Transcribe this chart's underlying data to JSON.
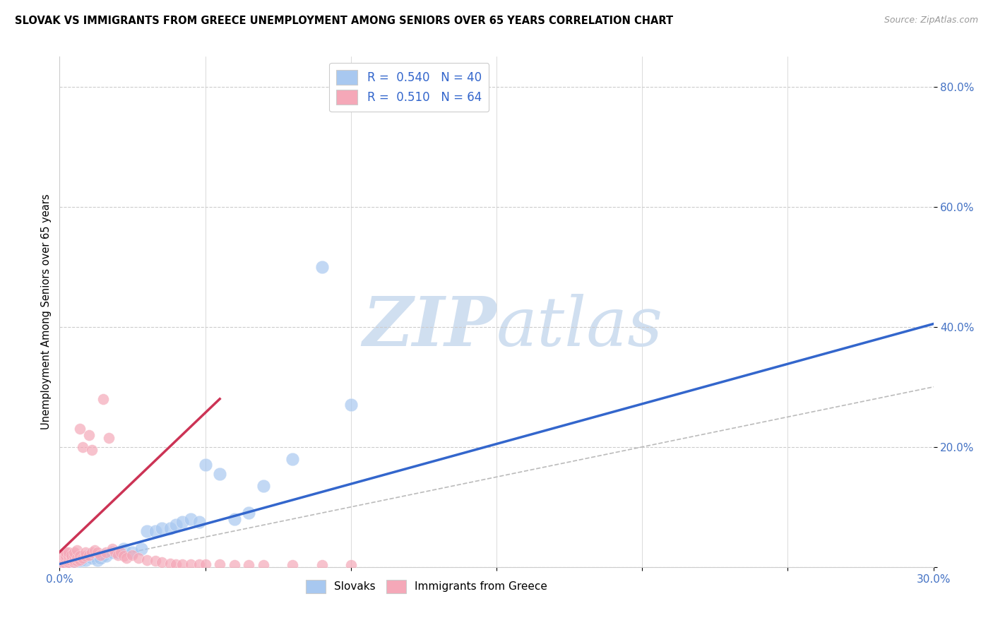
{
  "title": "SLOVAK VS IMMIGRANTS FROM GREECE UNEMPLOYMENT AMONG SENIORS OVER 65 YEARS CORRELATION CHART",
  "source": "Source: ZipAtlas.com",
  "ylabel": "Unemployment Among Seniors over 65 years",
  "xlim": [
    0.0,
    0.3
  ],
  "ylim": [
    0.0,
    0.85
  ],
  "x_ticks": [
    0.0,
    0.05,
    0.1,
    0.15,
    0.2,
    0.25,
    0.3
  ],
  "x_tick_labels": [
    "0.0%",
    "",
    "",
    "",
    "",
    "",
    "30.0%"
  ],
  "y_ticks": [
    0.0,
    0.2,
    0.4,
    0.6,
    0.8
  ],
  "y_tick_labels": [
    "",
    "20.0%",
    "40.0%",
    "60.0%",
    "80.0%"
  ],
  "blue_color": "#A8C8F0",
  "pink_color": "#F5A8B8",
  "blue_line_color": "#3366CC",
  "pink_line_color": "#CC3355",
  "diagonal_color": "#BBBBBB",
  "watermark_color": "#D0DFF0",
  "legend_R_blue": "0.540",
  "legend_N_blue": "40",
  "legend_R_pink": "0.510",
  "legend_N_pink": "64",
  "blue_scatter_x": [
    0.001,
    0.002,
    0.002,
    0.003,
    0.003,
    0.004,
    0.005,
    0.005,
    0.006,
    0.007,
    0.008,
    0.009,
    0.01,
    0.011,
    0.012,
    0.013,
    0.014,
    0.015,
    0.016,
    0.018,
    0.02,
    0.022,
    0.025,
    0.028,
    0.03,
    0.033,
    0.035,
    0.038,
    0.04,
    0.042,
    0.045,
    0.048,
    0.05,
    0.055,
    0.06,
    0.065,
    0.07,
    0.08,
    0.09,
    0.1
  ],
  "blue_scatter_y": [
    0.005,
    0.008,
    0.012,
    0.01,
    0.015,
    0.008,
    0.012,
    0.018,
    0.015,
    0.01,
    0.015,
    0.012,
    0.02,
    0.015,
    0.018,
    0.012,
    0.015,
    0.02,
    0.018,
    0.025,
    0.025,
    0.03,
    0.025,
    0.03,
    0.06,
    0.06,
    0.065,
    0.065,
    0.07,
    0.075,
    0.08,
    0.075,
    0.17,
    0.155,
    0.08,
    0.09,
    0.135,
    0.18,
    0.5,
    0.27
  ],
  "pink_scatter_x": [
    0.001,
    0.001,
    0.001,
    0.001,
    0.002,
    0.002,
    0.002,
    0.002,
    0.002,
    0.003,
    0.003,
    0.003,
    0.003,
    0.004,
    0.004,
    0.004,
    0.005,
    0.005,
    0.005,
    0.005,
    0.006,
    0.006,
    0.006,
    0.007,
    0.007,
    0.007,
    0.008,
    0.008,
    0.009,
    0.009,
    0.01,
    0.01,
    0.011,
    0.011,
    0.012,
    0.013,
    0.014,
    0.015,
    0.016,
    0.017,
    0.018,
    0.019,
    0.02,
    0.021,
    0.022,
    0.023,
    0.025,
    0.027,
    0.03,
    0.033,
    0.035,
    0.038,
    0.04,
    0.042,
    0.045,
    0.048,
    0.05,
    0.055,
    0.06,
    0.065,
    0.07,
    0.08,
    0.09,
    0.1
  ],
  "pink_scatter_y": [
    0.005,
    0.008,
    0.012,
    0.02,
    0.006,
    0.01,
    0.015,
    0.018,
    0.025,
    0.008,
    0.012,
    0.018,
    0.025,
    0.01,
    0.015,
    0.02,
    0.008,
    0.012,
    0.018,
    0.025,
    0.01,
    0.015,
    0.028,
    0.012,
    0.018,
    0.23,
    0.015,
    0.2,
    0.018,
    0.025,
    0.02,
    0.22,
    0.025,
    0.195,
    0.028,
    0.025,
    0.02,
    0.28,
    0.025,
    0.215,
    0.03,
    0.025,
    0.02,
    0.025,
    0.018,
    0.015,
    0.02,
    0.015,
    0.012,
    0.01,
    0.008,
    0.006,
    0.005,
    0.005,
    0.005,
    0.004,
    0.004,
    0.004,
    0.003,
    0.003,
    0.003,
    0.003,
    0.003,
    0.003
  ],
  "blue_line_x0": 0.0,
  "blue_line_y0": 0.005,
  "blue_line_x1": 0.3,
  "blue_line_y1": 0.405,
  "pink_line_x0": 0.0,
  "pink_line_y0": 0.025,
  "pink_line_x1": 0.055,
  "pink_line_y1": 0.28
}
